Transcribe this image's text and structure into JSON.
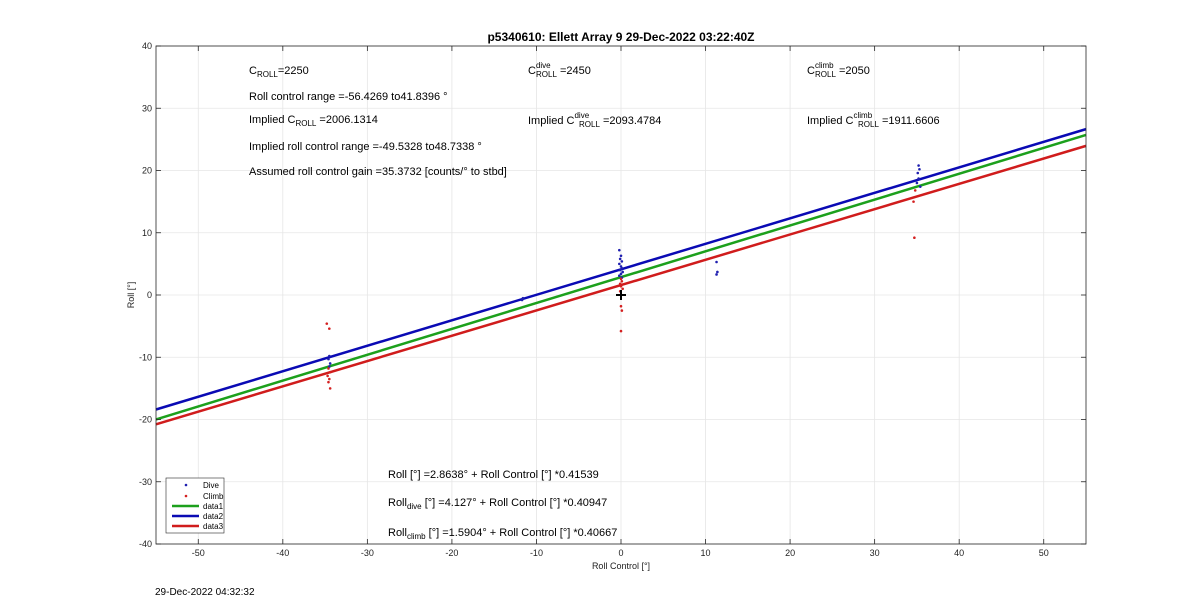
{
  "chart_data": {
    "type": "scatter",
    "title": "p5340610: Ellett Array 9 29-Dec-2022 03:22:40Z",
    "xlabel": "Roll Control [°]",
    "ylabel": "Roll [°]",
    "xlim": [
      -55,
      55
    ],
    "ylim": [
      -40,
      40
    ],
    "xticks": [
      -50,
      -40,
      -30,
      -20,
      -10,
      0,
      10,
      20,
      30,
      40,
      50
    ],
    "yticks": [
      -40,
      -30,
      -20,
      -10,
      0,
      10,
      20,
      30,
      40
    ],
    "grid": true,
    "legend_position": "bottom-left",
    "colors": {
      "dive": "#1f1fb0",
      "climb": "#d42020",
      "data1": "#1ca01c",
      "data2": "#0a0ab4",
      "data3": "#d01c1c",
      "marker": "#000000"
    },
    "series": [
      {
        "name": "Dive",
        "kind": "points",
        "points": [
          [
            -34.5,
            -9.8
          ],
          [
            -34.6,
            -10.3
          ],
          [
            -34.4,
            -11.0
          ],
          [
            -34.5,
            -11.5
          ],
          [
            -11.6,
            -0.5
          ],
          [
            -11.7,
            -0.8
          ],
          [
            -0.2,
            7.2
          ],
          [
            0.0,
            6.3
          ],
          [
            -0.1,
            5.8
          ],
          [
            0.1,
            5.4
          ],
          [
            -0.2,
            5.0
          ],
          [
            0.0,
            4.6
          ],
          [
            0.1,
            4.3
          ],
          [
            -0.1,
            4.0
          ],
          [
            0.2,
            3.7
          ],
          [
            0.0,
            3.4
          ],
          [
            -0.2,
            3.1
          ],
          [
            0.1,
            2.8
          ],
          [
            11.3,
            5.3
          ],
          [
            11.4,
            3.7
          ],
          [
            11.3,
            3.3
          ],
          [
            35.2,
            20.8
          ],
          [
            35.3,
            20.2
          ],
          [
            35.1,
            19.6
          ],
          [
            35.2,
            18.7
          ],
          [
            35.0,
            18.0
          ],
          [
            35.4,
            17.4
          ]
        ]
      },
      {
        "name": "Climb",
        "kind": "points",
        "points": [
          [
            -34.8,
            -4.6
          ],
          [
            -34.5,
            -5.4
          ],
          [
            -34.6,
            -11.8
          ],
          [
            -34.4,
            -12.4
          ],
          [
            -34.7,
            -13.0
          ],
          [
            -34.5,
            -13.5
          ],
          [
            -34.6,
            -14.0
          ],
          [
            -34.4,
            -15.0
          ],
          [
            0.0,
            2.6
          ],
          [
            0.1,
            2.2
          ],
          [
            -0.1,
            1.8
          ],
          [
            0.0,
            1.4
          ],
          [
            0.2,
            1.0
          ],
          [
            -0.1,
            0.6
          ],
          [
            0.0,
            -1.8
          ],
          [
            0.1,
            -2.5
          ],
          [
            0.0,
            -5.8
          ],
          [
            34.6,
            15.0
          ],
          [
            34.8,
            16.8
          ],
          [
            34.7,
            9.2
          ]
        ]
      },
      {
        "name": "data1",
        "kind": "line",
        "intercept": 2.8638,
        "slope": 0.41539
      },
      {
        "name": "data2",
        "kind": "line",
        "intercept": 4.127,
        "slope": 0.40947
      },
      {
        "name": "data3",
        "kind": "line",
        "intercept": 1.5904,
        "slope": 0.40667
      }
    ],
    "marker": {
      "x": 0,
      "y": 0,
      "symbol": "+"
    },
    "annotations": {
      "c_roll": {
        "a": "C",
        "sub": "ROLL",
        "b": "=2250"
      },
      "roll_range": "Roll control range =-56.4269 to41.8396 °",
      "implied_c_roll": {
        "a": "Implied C",
        "sub": "ROLL",
        "b": " =2006.1314"
      },
      "implied_range": "Implied roll control range =-49.5328 to48.7338 °",
      "gain": "Assumed roll control gain =35.3732 [counts/° to stbd]",
      "c_dive": {
        "a": "C",
        "sup": "dive",
        "sub": "ROLL",
        "b": " =2450"
      },
      "implied_c_dive": {
        "a": "Implied C",
        "sup": "dive",
        "sub": "ROLL",
        "b": " =2093.4784"
      },
      "c_climb": {
        "a": "C",
        "sup": "climb",
        "sub": "ROLL",
        "b": " =2050"
      },
      "implied_c_climb": {
        "a": "Implied C",
        "sup": "climb",
        "sub": "ROLL",
        "b": " =1911.6606"
      },
      "eq_all": {
        "a": "Roll [°] =2.8638° + Roll Control [°] *0.41539"
      },
      "eq_dive": {
        "a": "Roll",
        "sub": "dive",
        "b": " [°] =4.127° + Roll Control [°] *0.40947"
      },
      "eq_climb": {
        "a": "Roll",
        "sub": "climb",
        "b": " [°] =1.5904° + Roll Control [°] *0.40667"
      }
    }
  },
  "footer": {
    "timestamp": "29-Dec-2022 04:32:32"
  }
}
